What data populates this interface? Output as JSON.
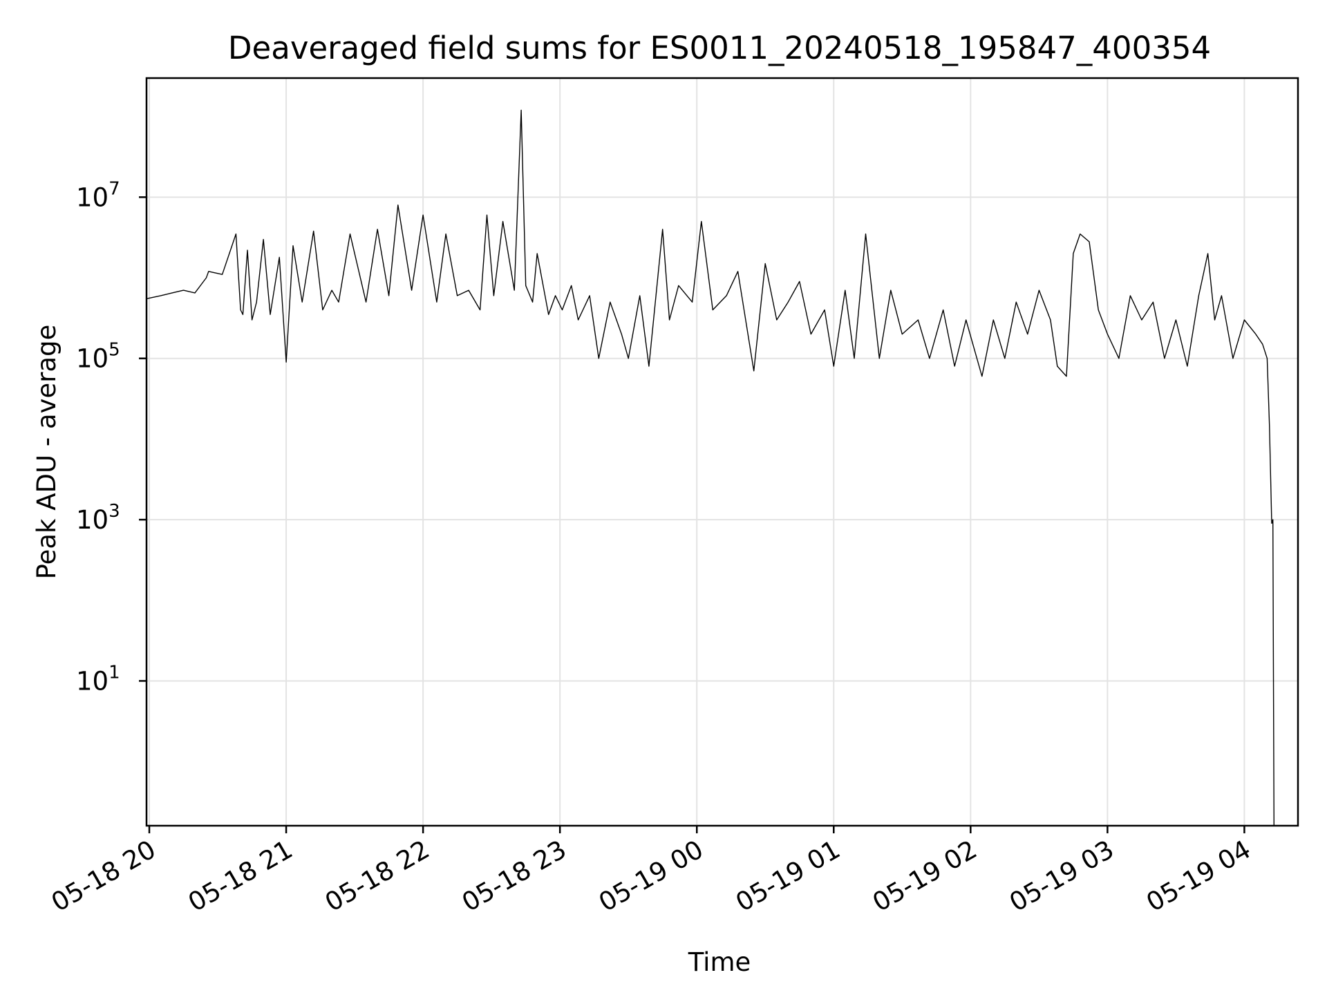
{
  "chart_data": {
    "type": "line",
    "title": "Deaveraged field sums for ES0011_20240518_195847_400354",
    "xlabel": "Time",
    "ylabel": "Peak ADU - average",
    "yscale": "log",
    "ylim": [
      0.16,
      300000000
    ],
    "xlim": [
      "2024-05-18 19:58:47",
      "2024-05-19 04:23:30"
    ],
    "grid": true,
    "line_color": "#000000",
    "x_ticks": [
      {
        "value": "2024-05-18 20:00",
        "label": "05-18 20"
      },
      {
        "value": "2024-05-18 21:00",
        "label": "05-18 21"
      },
      {
        "value": "2024-05-18 22:00",
        "label": "05-18 22"
      },
      {
        "value": "2024-05-18 23:00",
        "label": "05-18 23"
      },
      {
        "value": "2024-05-19 00:00",
        "label": "05-19 00"
      },
      {
        "value": "2024-05-19 01:00",
        "label": "05-19 01"
      },
      {
        "value": "2024-05-19 02:00",
        "label": "05-19 02"
      },
      {
        "value": "2024-05-19 03:00",
        "label": "05-19 03"
      },
      {
        "value": "2024-05-19 04:00",
        "label": "05-19 04"
      }
    ],
    "y_ticks": [
      {
        "value": 10,
        "base": "10",
        "exp": "1"
      },
      {
        "value": 1000,
        "base": "10",
        "exp": "3"
      },
      {
        "value": 100000,
        "base": "10",
        "exp": "5"
      },
      {
        "value": 10000000,
        "base": "10",
        "exp": "7"
      }
    ],
    "series": [
      {
        "x": [
          "2024-05-18 19:58:47",
          "2024-05-18 20:05",
          "2024-05-18 20:10",
          "2024-05-18 20:15",
          "2024-05-18 20:20",
          "2024-05-18 20:25",
          "2024-05-18 20:26",
          "2024-05-18 20:32",
          "2024-05-18 20:38",
          "2024-05-18 20:40",
          "2024-05-18 20:41",
          "2024-05-18 20:43",
          "2024-05-18 20:45",
          "2024-05-18 20:47",
          "2024-05-18 20:50",
          "2024-05-18 20:53",
          "2024-05-18 20:57",
          "2024-05-18 21:00",
          "2024-05-18 21:03",
          "2024-05-18 21:07",
          "2024-05-18 21:12",
          "2024-05-18 21:16",
          "2024-05-18 21:20",
          "2024-05-18 21:23",
          "2024-05-18 21:28",
          "2024-05-18 21:35",
          "2024-05-18 21:40",
          "2024-05-18 21:45",
          "2024-05-18 21:49",
          "2024-05-18 21:55",
          "2024-05-18 22:00",
          "2024-05-18 22:06",
          "2024-05-18 22:10",
          "2024-05-18 22:15",
          "2024-05-18 22:20",
          "2024-05-18 22:25",
          "2024-05-18 22:28",
          "2024-05-18 22:31",
          "2024-05-18 22:35",
          "2024-05-18 22:40",
          "2024-05-18 22:43",
          "2024-05-18 22:45",
          "2024-05-18 22:48",
          "2024-05-18 22:50",
          "2024-05-18 22:55",
          "2024-05-18 22:58",
          "2024-05-18 23:01",
          "2024-05-18 23:05",
          "2024-05-18 23:08",
          "2024-05-18 23:13",
          "2024-05-18 23:17",
          "2024-05-18 23:22",
          "2024-05-18 23:27",
          "2024-05-18 23:30",
          "2024-05-18 23:35",
          "2024-05-18 23:39",
          "2024-05-18 23:45",
          "2024-05-18 23:48",
          "2024-05-18 23:52",
          "2024-05-18 23:58",
          "2024-05-19 00:02",
          "2024-05-19 00:07",
          "2024-05-19 00:13",
          "2024-05-19 00:18",
          "2024-05-19 00:25",
          "2024-05-19 00:30",
          "2024-05-19 00:35",
          "2024-05-19 00:40",
          "2024-05-19 00:45",
          "2024-05-19 00:50",
          "2024-05-19 00:56",
          "2024-05-19 01:00",
          "2024-05-19 01:05",
          "2024-05-19 01:09",
          "2024-05-19 01:14",
          "2024-05-19 01:20",
          "2024-05-19 01:25",
          "2024-05-19 01:30",
          "2024-05-19 01:37",
          "2024-05-19 01:42",
          "2024-05-19 01:48",
          "2024-05-19 01:53",
          "2024-05-19 01:58",
          "2024-05-19 02:05",
          "2024-05-19 02:10",
          "2024-05-19 02:15",
          "2024-05-19 02:20",
          "2024-05-19 02:25",
          "2024-05-19 02:30",
          "2024-05-19 02:35",
          "2024-05-19 02:38",
          "2024-05-19 02:42",
          "2024-05-19 02:45",
          "2024-05-19 02:48",
          "2024-05-19 02:52",
          "2024-05-19 02:56",
          "2024-05-19 03:00",
          "2024-05-19 03:05",
          "2024-05-19 03:10",
          "2024-05-19 03:15",
          "2024-05-19 03:20",
          "2024-05-19 03:25",
          "2024-05-19 03:30",
          "2024-05-19 03:35",
          "2024-05-19 03:40",
          "2024-05-19 03:44",
          "2024-05-19 03:47",
          "2024-05-19 03:50",
          "2024-05-19 03:55",
          "2024-05-19 04:00",
          "2024-05-19 04:05",
          "2024-05-19 04:08",
          "2024-05-19 04:10",
          "2024-05-19 04:11",
          "2024-05-19 04:12",
          "2024-05-19 04:12:30",
          "2024-05-19 04:13"
        ],
        "y": [
          550000,
          600000,
          650000,
          700000,
          650000,
          1000000,
          1200000,
          1100000,
          3500000,
          400000,
          350000,
          2200000,
          300000,
          500000,
          3000000,
          350000,
          1800000,
          90000,
          2500000,
          500000,
          3800000,
          400000,
          700000,
          500000,
          3500000,
          500000,
          4000000,
          600000,
          8000000,
          700000,
          6000000,
          500000,
          3500000,
          600000,
          700000,
          400000,
          6000000,
          600000,
          5000000,
          700000,
          120000000,
          800000,
          500000,
          2000000,
          350000,
          600000,
          400000,
          800000,
          300000,
          600000,
          100000,
          500000,
          200000,
          100000,
          600000,
          80000,
          4000000,
          300000,
          800000,
          500000,
          5000000,
          400000,
          600000,
          1200000,
          70000,
          1500000,
          300000,
          500000,
          900000,
          200000,
          400000,
          80000,
          700000,
          100000,
          3500000,
          100000,
          700000,
          200000,
          300000,
          100000,
          400000,
          80000,
          300000,
          60000,
          300000,
          100000,
          500000,
          200000,
          700000,
          300000,
          80000,
          60000,
          2000000,
          3500000,
          2800000,
          400000,
          200000,
          100000,
          600000,
          300000,
          500000,
          100000,
          300000,
          80000,
          600000,
          2000000,
          300000,
          600000,
          100000,
          300000,
          200000,
          150000,
          100000,
          15000,
          900,
          1000,
          0.16
        ]
      }
    ]
  }
}
